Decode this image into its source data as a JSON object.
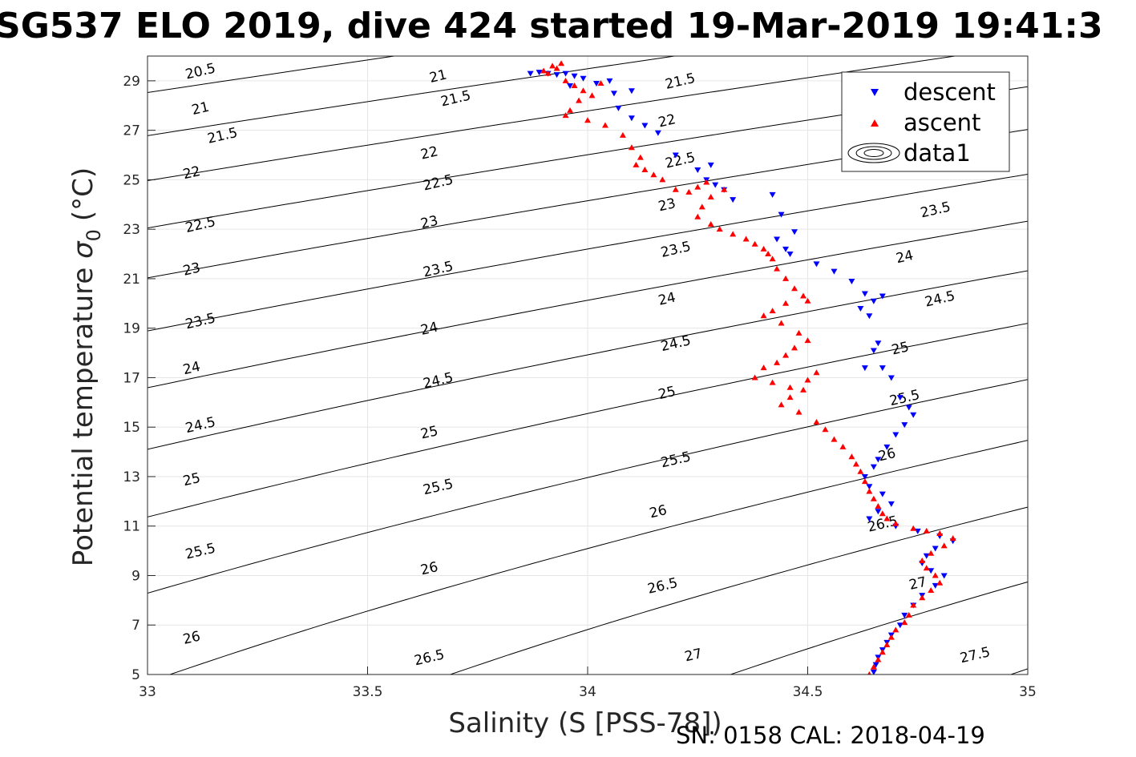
{
  "chart_data": {
    "type": "scatter",
    "title": "SG537 ELO 2019, dive 424 started 19-Mar-2019 19:41:3",
    "xlabel": "Salinity (S [PSS-78])",
    "ylabel_text": "Potential temperature",
    "ylabel_symbol": "σ",
    "ylabel_subscript": "0",
    "ylabel_unit": "(°C)",
    "footer": "SN: 0158  CAL: 2018-04-19",
    "xlim": [
      33,
      35
    ],
    "ylim": [
      5,
      30
    ],
    "xticks": [
      33,
      33.5,
      34,
      34.5,
      35
    ],
    "xtick_labels": [
      "33",
      "33.5",
      "34",
      "34.5",
      "35"
    ],
    "yticks": [
      5,
      7,
      9,
      11,
      13,
      15,
      17,
      19,
      21,
      23,
      25,
      27,
      29
    ],
    "ytick_labels": [
      "5",
      "7",
      "9",
      "11",
      "13",
      "15",
      "17",
      "19",
      "21",
      "23",
      "25",
      "27",
      "29"
    ],
    "grid": true,
    "legend_position": "top-right",
    "legend": [
      {
        "label": "descent",
        "marker": "triangle-down",
        "color": "#0000ff"
      },
      {
        "label": "ascent",
        "marker": "triangle-up",
        "color": "#ff0000"
      },
      {
        "label": "data1",
        "marker": "contour",
        "color": "#000000"
      }
    ],
    "colors": {
      "descent": "#0000ff",
      "ascent": "#ff0000",
      "contour": "#000000",
      "grid": "#e6e6e6"
    },
    "contour_levels": [
      20.5,
      21,
      21.5,
      22,
      22.5,
      23,
      23.5,
      24,
      24.5,
      25,
      25.5,
      26,
      26.5,
      27,
      27.5
    ],
    "contour_labels": [
      {
        "text": "20.5",
        "x": 33.12,
        "y": 29.4
      },
      {
        "text": "21",
        "x": 33.12,
        "y": 27.9
      },
      {
        "text": "21.5",
        "x": 33.17,
        "y": 26.8
      },
      {
        "text": "22",
        "x": 33.1,
        "y": 25.3
      },
      {
        "text": "22.5",
        "x": 33.12,
        "y": 23.2
      },
      {
        "text": "23",
        "x": 33.1,
        "y": 21.4
      },
      {
        "text": "23.5",
        "x": 33.12,
        "y": 19.3
      },
      {
        "text": "24",
        "x": 33.1,
        "y": 17.4
      },
      {
        "text": "24.5",
        "x": 33.12,
        "y": 15.1
      },
      {
        "text": "25",
        "x": 33.1,
        "y": 12.9
      },
      {
        "text": "25.5",
        "x": 33.12,
        "y": 10
      },
      {
        "text": "26",
        "x": 33.1,
        "y": 6.5
      },
      {
        "text": "21",
        "x": 33.66,
        "y": 29.2
      },
      {
        "text": "21.5",
        "x": 33.7,
        "y": 28.3
      },
      {
        "text": "22",
        "x": 33.64,
        "y": 26.1
      },
      {
        "text": "22.5",
        "x": 33.66,
        "y": 24.9
      },
      {
        "text": "23",
        "x": 33.64,
        "y": 23.3
      },
      {
        "text": "23.5",
        "x": 33.66,
        "y": 21.4
      },
      {
        "text": "24",
        "x": 33.64,
        "y": 19
      },
      {
        "text": "24.5",
        "x": 33.66,
        "y": 16.9
      },
      {
        "text": "25",
        "x": 33.64,
        "y": 14.8
      },
      {
        "text": "25.5",
        "x": 33.66,
        "y": 12.6
      },
      {
        "text": "26",
        "x": 33.64,
        "y": 9.3
      },
      {
        "text": "26.5",
        "x": 33.64,
        "y": 5.7
      },
      {
        "text": "21.5",
        "x": 34.21,
        "y": 29.0
      },
      {
        "text": "22",
        "x": 34.18,
        "y": 27.4
      },
      {
        "text": "22.5",
        "x": 34.21,
        "y": 25.8
      },
      {
        "text": "23",
        "x": 34.18,
        "y": 24.0
      },
      {
        "text": "23.5",
        "x": 34.2,
        "y": 22.2
      },
      {
        "text": "24",
        "x": 34.18,
        "y": 20.2
      },
      {
        "text": "24.5",
        "x": 34.2,
        "y": 18.4
      },
      {
        "text": "25",
        "x": 34.18,
        "y": 16.4
      },
      {
        "text": "25.5",
        "x": 34.2,
        "y": 13.7
      },
      {
        "text": "26",
        "x": 34.16,
        "y": 11.6
      },
      {
        "text": "26.5",
        "x": 34.17,
        "y": 8.6
      },
      {
        "text": "27",
        "x": 34.24,
        "y": 5.8
      },
      {
        "text": "23.5",
        "x": 34.79,
        "y": 23.8
      },
      {
        "text": "24",
        "x": 34.72,
        "y": 21.9
      },
      {
        "text": "24.5",
        "x": 34.8,
        "y": 20.2
      },
      {
        "text": "25",
        "x": 34.71,
        "y": 18.2
      },
      {
        "text": "25.5",
        "x": 34.72,
        "y": 16.2
      },
      {
        "text": "26",
        "x": 34.68,
        "y": 13.9
      },
      {
        "text": "26.5",
        "x": 34.67,
        "y": 11.1
      },
      {
        "text": "27",
        "x": 34.75,
        "y": 8.7
      },
      {
        "text": "27.5",
        "x": 34.88,
        "y": 5.8
      }
    ],
    "series": [
      {
        "name": "descent",
        "x": [
          33.87,
          33.89,
          33.91,
          33.93,
          33.95,
          33.97,
          33.99,
          34.02,
          33.96,
          34.05,
          34.06,
          34.1,
          34.07,
          34.1,
          34.13,
          34.16,
          34.2,
          34.25,
          34.27,
          34.29,
          34.31,
          34.33,
          34.28,
          34.42,
          34.44,
          34.47,
          34.45,
          34.43,
          34.46,
          34.52,
          34.56,
          34.6,
          34.63,
          34.65,
          34.67,
          34.62,
          34.64,
          34.66,
          34.65,
          34.63,
          34.67,
          34.69,
          34.71,
          34.73,
          34.74,
          34.72,
          34.7,
          34.68,
          34.66,
          34.65,
          34.63,
          34.64,
          34.67,
          34.69,
          34.66,
          34.64,
          34.7,
          34.75,
          34.8,
          34.83,
          34.79,
          34.77,
          34.76,
          34.78,
          34.81,
          34.79,
          34.76,
          34.74,
          34.72,
          34.71,
          34.69,
          34.68,
          34.67,
          34.66,
          34.655,
          34.65
        ],
        "y": [
          29.3,
          29.35,
          29.3,
          29.25,
          29.3,
          29.2,
          29.1,
          28.9,
          28.8,
          29.0,
          28.5,
          28.6,
          27.9,
          27.5,
          27.2,
          26.9,
          26.0,
          25.4,
          25.0,
          24.8,
          24.6,
          24.2,
          25.6,
          24.4,
          23.6,
          22.9,
          22.2,
          22.6,
          22.0,
          21.6,
          21.3,
          20.9,
          20.4,
          20.1,
          20.3,
          19.8,
          19.5,
          18.4,
          18.1,
          17.4,
          17.4,
          17.0,
          16.2,
          15.8,
          15.5,
          15.1,
          14.7,
          14.2,
          13.7,
          13.4,
          13.0,
          12.6,
          12.3,
          11.9,
          11.6,
          11.3,
          11.0,
          10.8,
          10.6,
          10.4,
          10.1,
          9.8,
          9.5,
          9.2,
          9.0,
          8.6,
          8.2,
          7.8,
          7.4,
          7.0,
          6.6,
          6.3,
          6.0,
          5.7,
          5.4,
          5.1
        ]
      },
      {
        "name": "ascent",
        "x": [
          33.9,
          33.92,
          33.94,
          33.93,
          33.91,
          33.95,
          33.97,
          33.99,
          34.01,
          34.03,
          33.98,
          33.96,
          33.95,
          34.0,
          34.04,
          34.08,
          34.1,
          34.12,
          34.11,
          34.13,
          34.15,
          34.17,
          34.2,
          34.23,
          34.25,
          34.27,
          34.28,
          34.31,
          34.26,
          34.25,
          34.28,
          34.3,
          34.33,
          34.36,
          34.38,
          34.4,
          34.41,
          34.42,
          34.43,
          34.45,
          34.47,
          34.49,
          34.5,
          34.45,
          34.42,
          34.4,
          34.44,
          34.48,
          34.5,
          34.47,
          34.45,
          34.43,
          34.4,
          34.38,
          34.42,
          34.46,
          34.5,
          34.52,
          34.49,
          34.46,
          34.44,
          34.48,
          34.52,
          34.54,
          34.56,
          34.58,
          34.6,
          34.61,
          34.62,
          34.63,
          34.64,
          34.65,
          34.66,
          34.67,
          34.68,
          34.7,
          34.74,
          34.77,
          34.8,
          34.83,
          34.81,
          34.78,
          34.76,
          34.77,
          34.79,
          34.8,
          34.78,
          34.76,
          34.74,
          34.73,
          34.72,
          34.7,
          34.69,
          34.68,
          34.67,
          34.66,
          34.65,
          34.64
        ],
        "y": [
          29.4,
          29.6,
          29.7,
          29.5,
          29.3,
          29.0,
          28.8,
          28.6,
          28.4,
          28.9,
          28.2,
          27.8,
          27.6,
          27.4,
          27.2,
          26.8,
          26.3,
          25.9,
          25.6,
          25.4,
          25.2,
          25.0,
          24.6,
          24.5,
          24.7,
          24.9,
          24.3,
          24.6,
          23.9,
          23.5,
          23.2,
          23.0,
          22.8,
          22.6,
          22.4,
          22.2,
          22.0,
          21.8,
          21.4,
          21.0,
          20.6,
          20.3,
          20.1,
          20.0,
          19.7,
          19.5,
          19.2,
          18.8,
          18.5,
          18.2,
          17.9,
          17.6,
          17.4,
          17.0,
          16.8,
          16.6,
          16.9,
          17.2,
          16.5,
          16.2,
          15.9,
          15.6,
          15.2,
          14.9,
          14.5,
          14.2,
          13.8,
          13.5,
          13.2,
          12.8,
          12.4,
          12.1,
          11.8,
          11.5,
          11.3,
          11.1,
          10.9,
          10.8,
          10.7,
          10.5,
          10.2,
          9.9,
          9.6,
          9.3,
          9.0,
          8.7,
          8.4,
          8.1,
          7.8,
          7.4,
          7.1,
          6.8,
          6.5,
          6.2,
          5.9,
          5.6,
          5.3,
          5.0
        ]
      }
    ]
  }
}
